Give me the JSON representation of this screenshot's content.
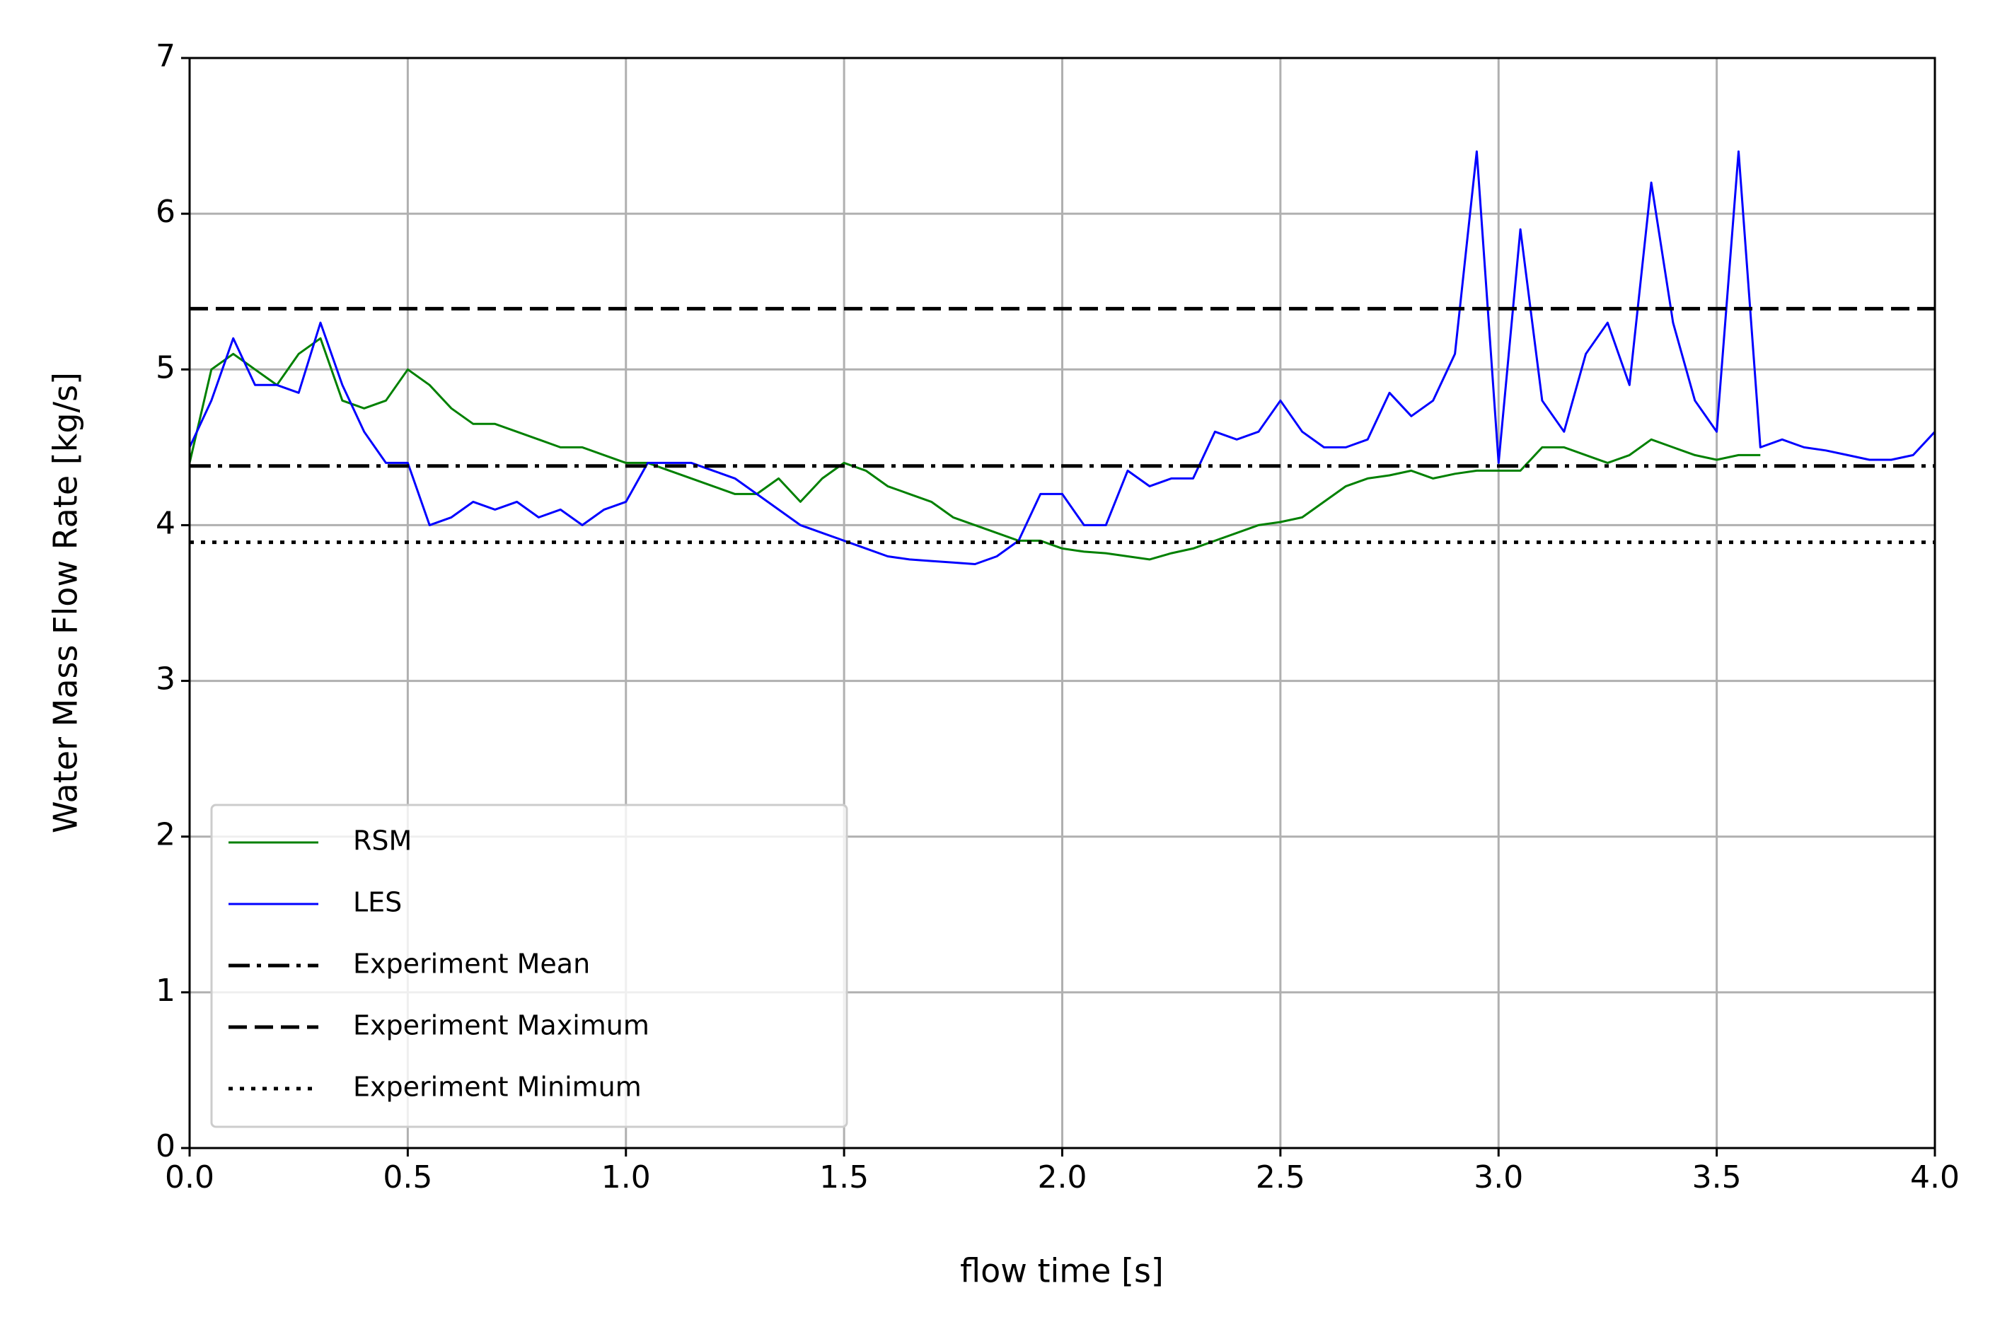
{
  "chart_data": {
    "type": "line",
    "xlabel": "flow time [s]",
    "ylabel": "Water Mass Flow Rate [kg/s]",
    "x": [
      0,
      0.05,
      0.1,
      0.15,
      0.2,
      0.25,
      0.3,
      0.35,
      0.4,
      0.45,
      0.5,
      0.55,
      0.6,
      0.65,
      0.7,
      0.75,
      0.8,
      0.85,
      0.9,
      0.95,
      1.0,
      1.05,
      1.1,
      1.15,
      1.2,
      1.25,
      1.3,
      1.35,
      1.4,
      1.45,
      1.5,
      1.55,
      1.6,
      1.65,
      1.7,
      1.75,
      1.8,
      1.85,
      1.9,
      1.95,
      2.0,
      2.05,
      2.1,
      2.15,
      2.2,
      2.25,
      2.3,
      2.35,
      2.4,
      2.45,
      2.5,
      2.55,
      2.6,
      2.65,
      2.7,
      2.75,
      2.8,
      2.85,
      2.9,
      2.95,
      3.0,
      3.05,
      3.1,
      3.15,
      3.2,
      3.25,
      3.3,
      3.35,
      3.4,
      3.45,
      3.5,
      3.55,
      3.6,
      3.65,
      3.7,
      3.75,
      3.8,
      3.85,
      3.9,
      3.95,
      4.0
    ],
    "series": [
      {
        "name": "RSM",
        "color": "#008000",
        "values": [
          4.4,
          5.0,
          5.1,
          5.0,
          4.9,
          5.1,
          5.2,
          4.8,
          4.75,
          4.8,
          5.0,
          4.9,
          4.75,
          4.65,
          4.65,
          4.6,
          4.55,
          4.5,
          4.5,
          4.45,
          4.4,
          4.4,
          4.35,
          4.3,
          4.25,
          4.2,
          4.2,
          4.3,
          4.15,
          4.3,
          4.4,
          4.35,
          4.25,
          4.2,
          4.15,
          4.05,
          4.0,
          3.95,
          3.9,
          3.9,
          3.85,
          3.83,
          3.82,
          3.8,
          3.78,
          3.82,
          3.85,
          3.9,
          3.95,
          4.0,
          4.02,
          4.05,
          4.15,
          4.25,
          4.3,
          4.32,
          4.35,
          4.3,
          4.33,
          4.35,
          4.35,
          4.35,
          4.5,
          4.5,
          4.45,
          4.4,
          4.45,
          4.55,
          4.5,
          4.45,
          4.42,
          4.45,
          4.45,
          null,
          null,
          null,
          null,
          null,
          null,
          null,
          null
        ]
      },
      {
        "name": "LES",
        "color": "#0000ff",
        "values": [
          4.5,
          4.8,
          5.2,
          4.9,
          4.9,
          4.85,
          5.3,
          4.9,
          4.6,
          4.4,
          4.4,
          4.0,
          4.05,
          4.15,
          4.1,
          4.15,
          4.05,
          4.1,
          4.0,
          4.1,
          4.15,
          4.4,
          4.4,
          4.4,
          4.35,
          4.3,
          4.2,
          4.1,
          4.0,
          3.95,
          3.9,
          3.85,
          3.8,
          3.78,
          3.77,
          3.76,
          3.75,
          3.8,
          3.9,
          4.2,
          4.2,
          4.0,
          4.0,
          4.35,
          4.25,
          4.3,
          4.3,
          4.6,
          4.55,
          4.6,
          4.8,
          4.6,
          4.5,
          4.5,
          4.55,
          4.85,
          4.7,
          4.8,
          5.1,
          6.4,
          4.4,
          5.9,
          4.8,
          4.6,
          5.1,
          5.3,
          4.9,
          6.2,
          5.3,
          4.8,
          4.6,
          6.4,
          4.5,
          4.55,
          4.5,
          4.48,
          4.45,
          4.42,
          4.42,
          4.45,
          4.6
        ]
      }
    ],
    "hlines": [
      {
        "name": "Experiment Mean",
        "value": 4.38,
        "color": "#000000",
        "style": "dashdot"
      },
      {
        "name": "Experiment Maximum",
        "value": 5.39,
        "color": "#000000",
        "style": "dashed"
      },
      {
        "name": "Experiment Minimum",
        "value": 3.89,
        "color": "#000000",
        "style": "dotted"
      }
    ],
    "xlim": [
      0,
      4
    ],
    "xticks": [
      {
        "value": 0,
        "label": "0.0"
      },
      0.5,
      {
        "value": 1,
        "label": "1.0"
      },
      1.5,
      {
        "value": 2,
        "label": "2.0"
      },
      2.5,
      {
        "value": 3,
        "label": "3.0"
      },
      3.5,
      {
        "value": 4,
        "label": "4.0"
      }
    ],
    "ylim": [
      0,
      7
    ],
    "yticks": [
      0,
      1,
      2,
      3,
      4,
      5,
      6,
      7
    ],
    "grid": true,
    "legend": "lower left"
  }
}
